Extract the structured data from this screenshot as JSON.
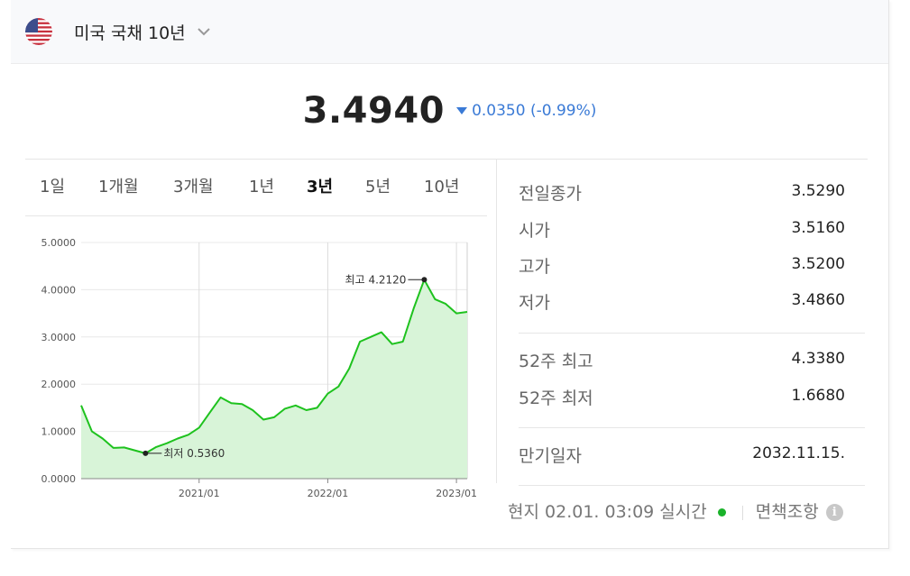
{
  "header": {
    "instrument": "미국 국채 10년",
    "flag_icon": "us-flag-icon"
  },
  "quote": {
    "price": "3.4940",
    "change": "0.0350",
    "change_pct": "(-0.99%)",
    "direction": "down",
    "color": "#3a7ad6"
  },
  "tabs": [
    {
      "label": "1일",
      "active": false
    },
    {
      "label": "1개월",
      "active": false
    },
    {
      "label": "3개월",
      "active": false
    },
    {
      "label": "1년",
      "active": false
    },
    {
      "label": "3년",
      "active": true
    },
    {
      "label": "5년",
      "active": false
    },
    {
      "label": "10년",
      "active": false
    }
  ],
  "stats": [
    {
      "label": "전일종가",
      "value": "3.5290"
    },
    {
      "label": "시가",
      "value": "3.5160"
    },
    {
      "label": "고가",
      "value": "3.5200"
    },
    {
      "label": "저가",
      "value": "3.4860"
    },
    {
      "label": "52주 최고",
      "value": "4.3380"
    },
    {
      "label": "52주 최저",
      "value": "1.6680"
    },
    {
      "label": "만기일자",
      "value": "2032.11.15."
    }
  ],
  "footer": {
    "local_label": "현지",
    "time": "02.01. 03:09",
    "realtime_label": "실시간",
    "disclaimer": "면책조항",
    "status_color": "#1ab22a"
  },
  "chart_data": {
    "type": "area",
    "y_ticks": [
      "5.0000",
      "4.0000",
      "3.0000",
      "2.0000",
      "1.0000",
      "0.0000"
    ],
    "ylim": [
      0,
      5
    ],
    "x_ticks": [
      "2021/01",
      "2022/01",
      "2023/01"
    ],
    "x_range": [
      "2020-02",
      "2023-02"
    ],
    "line_color": "#1ec21e",
    "fill_color": "#d8f4d8",
    "annotations": [
      {
        "label": "최고",
        "value": "4.2120",
        "x": "2022-10",
        "y": 4.212
      },
      {
        "label": "최저",
        "value": "0.5360",
        "x": "2020-08",
        "y": 0.536
      }
    ],
    "series": [
      {
        "x": [
          "2020-02",
          "2020-03",
          "2020-04",
          "2020-05",
          "2020-06",
          "2020-07",
          "2020-08",
          "2020-09",
          "2020-10",
          "2020-11",
          "2020-12",
          "2021-01",
          "2021-02",
          "2021-03",
          "2021-04",
          "2021-05",
          "2021-06",
          "2021-07",
          "2021-08",
          "2021-09",
          "2021-10",
          "2021-11",
          "2021-12",
          "2022-01",
          "2022-02",
          "2022-03",
          "2022-04",
          "2022-05",
          "2022-06",
          "2022-07",
          "2022-08",
          "2022-09",
          "2022-10",
          "2022-11",
          "2022-12",
          "2023-01",
          "2023-02"
        ],
        "values": [
          1.55,
          1.0,
          0.85,
          0.65,
          0.66,
          0.6,
          0.536,
          0.67,
          0.75,
          0.85,
          0.93,
          1.08,
          1.4,
          1.72,
          1.6,
          1.58,
          1.45,
          1.25,
          1.3,
          1.48,
          1.55,
          1.45,
          1.5,
          1.8,
          1.95,
          2.33,
          2.9,
          3.0,
          3.1,
          2.85,
          2.9,
          3.6,
          4.212,
          3.8,
          3.7,
          3.5,
          3.53
        ]
      }
    ]
  }
}
